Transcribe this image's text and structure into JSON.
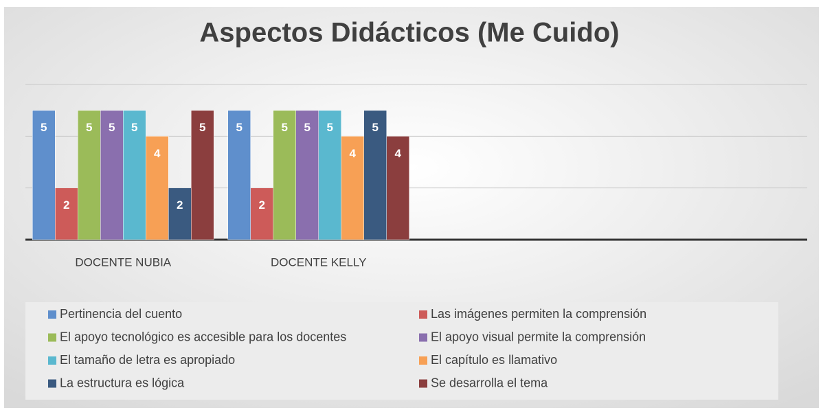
{
  "chart_data": {
    "type": "bar",
    "title": "Aspectos Didácticos (Me Cuido)",
    "categories": [
      "DOCENTE NUBIA",
      "DOCENTE KELLY",
      null,
      null
    ],
    "series": [
      {
        "name": "Pertinencia del cuento",
        "color": "#5f8fcc",
        "values": [
          5,
          5,
          null,
          null
        ]
      },
      {
        "name": "Las imágenes permiten la comprensión",
        "color": "#cd5b59",
        "values": [
          2,
          2,
          null,
          null
        ]
      },
      {
        "name": "El apoyo tecnológico es accesible para los docentes",
        "color": "#9bbb59",
        "values": [
          5,
          5,
          null,
          null
        ]
      },
      {
        "name": "El apoyo visual permite la comprensión",
        "color": "#8a6fae",
        "values": [
          5,
          5,
          null,
          null
        ]
      },
      {
        "name": "El tamaño de letra es apropiado",
        "color": "#5ab8cf",
        "values": [
          5,
          5,
          null,
          null
        ]
      },
      {
        "name": "El capítulo es llamativo",
        "color": "#f7a055",
        "values": [
          4,
          4,
          null,
          null
        ]
      },
      {
        "name": "La estructura es lógica",
        "color": "#3a5a80",
        "values": [
          2,
          5,
          null,
          null
        ]
      },
      {
        "name": "Se desarrolla el tema",
        "color": "#8b3e3e",
        "values": [
          5,
          4,
          null,
          null
        ]
      }
    ],
    "ylim": [
      0,
      6
    ],
    "yticks": [
      0,
      2,
      4,
      6
    ],
    "grid": true,
    "legend": "bottom"
  }
}
